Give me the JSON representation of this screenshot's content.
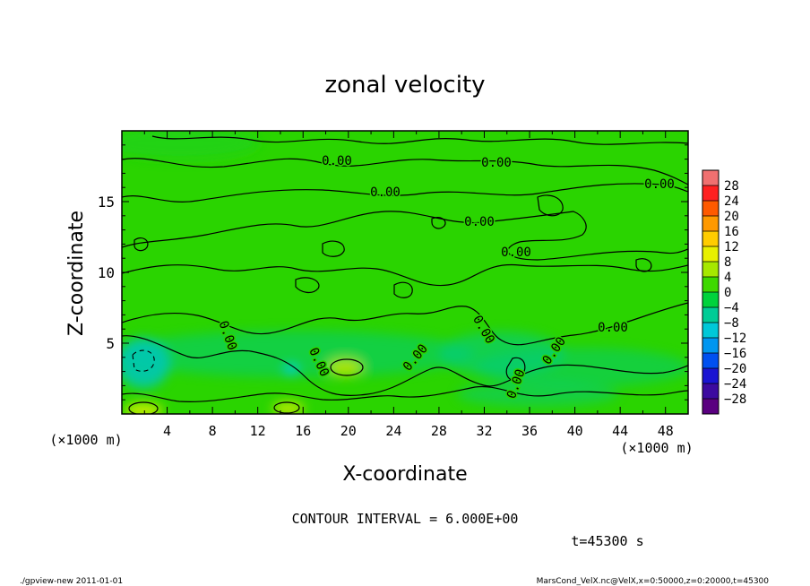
{
  "chart_data": {
    "type": "heatmap",
    "title": "zonal velocity",
    "xlabel": "X-coordinate",
    "ylabel": "Z-coordinate",
    "x_unit": "(×1000 m)",
    "y_unit": "(×1000 m)",
    "xlim": [
      0,
      50
    ],
    "ylim": [
      0,
      20
    ],
    "x_ticks": [
      "4",
      "8",
      "12",
      "16",
      "20",
      "24",
      "28",
      "32",
      "36",
      "40",
      "44",
      "48"
    ],
    "y_ticks": [
      "5",
      "10",
      "15"
    ],
    "contour_interval_text": "CONTOUR INTERVAL = 6.000E+00",
    "time_text": "t=45300 s",
    "contour_labels": [
      "0.00",
      "0.00",
      "0.00",
      "0.00",
      "0.00",
      "0.00",
      "0.00",
      "0.00",
      "0.00",
      "0.00",
      "0.00",
      "0.00",
      "0.00"
    ],
    "colorbar": {
      "labels": [
        "28",
        "24",
        "20",
        "16",
        "12",
        "8",
        "4",
        "0",
        "−4",
        "−8",
        "−12",
        "−16",
        "−20",
        "−24",
        "−28"
      ],
      "colors": [
        "#f07070",
        "#ff2020",
        "#ff5a00",
        "#ff9900",
        "#ffcc00",
        "#e8f000",
        "#a6e800",
        "#3ed900",
        "#00d23c",
        "#00cc96",
        "#00c8d8",
        "#0096f0",
        "#0050f0",
        "#1a14d2",
        "#3c0aa0",
        "#5a0080"
      ]
    },
    "field_description_values": {
      "background": 1,
      "near_surface_min": -8,
      "near_surface_max": 9
    }
  },
  "footer": {
    "left": "./gpview-new  2011-01-01",
    "right": "MarsCond_VelX.nc@VelX,x=0:50000,z=0:20000,t=45300"
  }
}
